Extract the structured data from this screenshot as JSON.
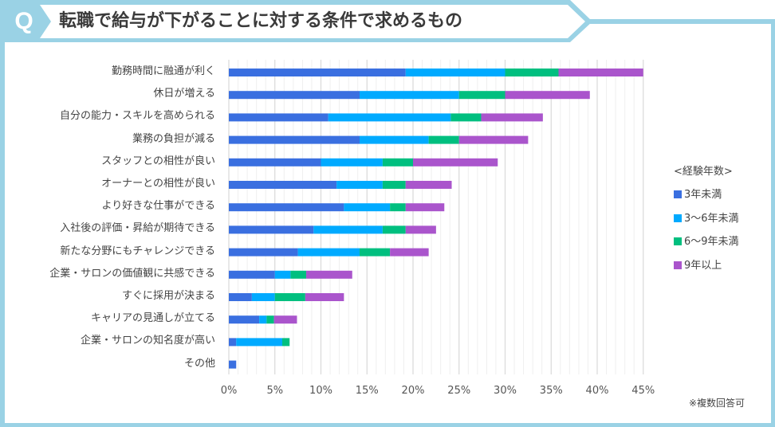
{
  "header": {
    "q_mark": "Q",
    "title": "転職で給与が下がることに対する条件で求めるもの"
  },
  "colors": {
    "frame": "#9ad2e5",
    "series": [
      "#3a6fe0",
      "#00aaff",
      "#00bf7f",
      "#aa55cc"
    ]
  },
  "chart_data": {
    "type": "bar",
    "orientation": "horizontal",
    "stacked": true,
    "title": "転職で給与が下がることに対する条件で求めるもの",
    "xlabel": "",
    "ylabel": "",
    "xlim": [
      0,
      45
    ],
    "x_ticks": [
      "0%",
      "5%",
      "10%",
      "15%",
      "20%",
      "25%",
      "30%",
      "35%",
      "40%",
      "45%"
    ],
    "grid": true,
    "legend_title": "<経験年数>",
    "legend_position": "right",
    "categories": [
      "勤務時間に融通が利く",
      "休日が増える",
      "自分の能力・スキルを高められる",
      "業務の負担が減る",
      "スタッフとの相性が良い",
      "オーナーとの相性が良い",
      "より好きな仕事ができる",
      "入社後の評価・昇給が期待できる",
      "新たな分野にもチャレンジできる",
      "企業・サロンの価値観に共感できる",
      "すぐに採用が決まる",
      "キャリアの見通しが立てる",
      "企業・サロンの知名度が高い",
      "その他"
    ],
    "series": [
      {
        "name": "3年未満",
        "values": [
          19.2,
          14.2,
          10.8,
          14.2,
          10.0,
          11.7,
          12.5,
          9.2,
          7.5,
          5.0,
          2.5,
          3.3,
          0.8,
          0.8
        ]
      },
      {
        "name": "3〜6年未満",
        "values": [
          10.8,
          10.8,
          13.3,
          7.5,
          6.7,
          5.0,
          5.0,
          7.5,
          6.7,
          1.7,
          2.5,
          0.8,
          5.0,
          0
        ]
      },
      {
        "name": "6〜9年未満",
        "values": [
          5.8,
          5.0,
          3.3,
          3.3,
          3.3,
          2.5,
          1.7,
          2.5,
          3.3,
          1.7,
          3.3,
          0.8,
          0.8,
          0
        ]
      },
      {
        "name": "9年以上",
        "values": [
          9.2,
          9.2,
          6.7,
          7.5,
          9.2,
          5.0,
          4.2,
          3.3,
          4.2,
          5.0,
          4.2,
          2.5,
          0,
          0
        ]
      }
    ],
    "unit": "%"
  },
  "note": "※複数回答可"
}
